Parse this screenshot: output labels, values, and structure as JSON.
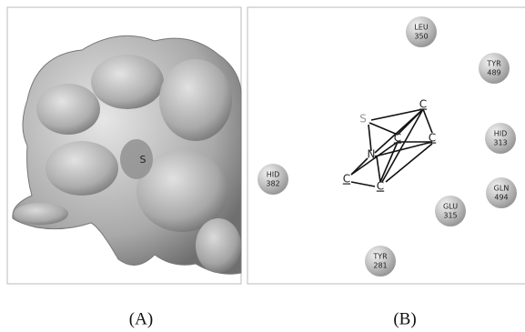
{
  "panels": [
    {
      "label": "(A)",
      "atom": "S"
    },
    {
      "label": "(B)",
      "residues": [
        {
          "name": "LEU",
          "number": "350"
        },
        {
          "name": "TYR",
          "number": "489"
        },
        {
          "name": "HID",
          "number": "313"
        },
        {
          "name": "HID",
          "number": "382"
        },
        {
          "name": "GLN",
          "number": "494"
        },
        {
          "name": "GLU",
          "number": "315"
        },
        {
          "name": "TYR",
          "number": "281"
        }
      ],
      "atoms": [
        "C",
        "S",
        "C",
        "C",
        "N",
        "C",
        "C"
      ]
    }
  ]
}
